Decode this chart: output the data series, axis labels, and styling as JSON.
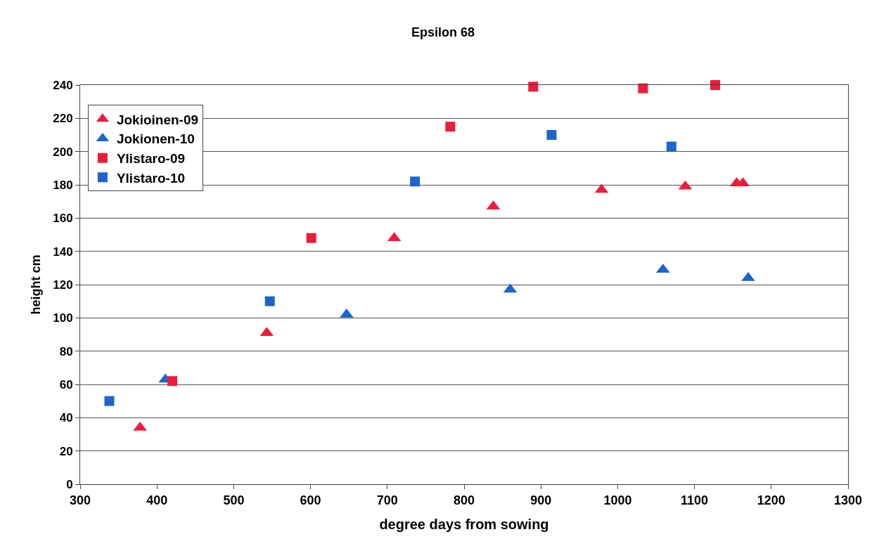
{
  "chart_data": {
    "type": "scatter",
    "title": "Epsilon 68",
    "xlabel": "degree days from sowing",
    "ylabel": "height cm",
    "xlim": [
      300,
      1300
    ],
    "xticks": [
      300,
      400,
      500,
      600,
      700,
      800,
      900,
      1000,
      1100,
      1200,
      1300
    ],
    "ylim": [
      0,
      240
    ],
    "yticks": [
      0,
      20,
      40,
      60,
      80,
      100,
      120,
      140,
      160,
      180,
      200,
      220,
      240
    ],
    "grid": "y",
    "legend": "top left",
    "series": [
      {
        "name": "Jokioinen-09",
        "color": "#ee1c3a",
        "marker": "triangle",
        "x": [
          378,
          543,
          709,
          838,
          979,
          1088,
          1155,
          1163
        ],
        "values": [
          34,
          91,
          148,
          167,
          177,
          179,
          181,
          181
        ]
      },
      {
        "name": "Jokionen-10",
        "color": "#1a66cc",
        "marker": "triangle",
        "x": [
          411,
          647,
          860,
          1059,
          1170
        ],
        "values": [
          63,
          102,
          117,
          129,
          124
        ]
      },
      {
        "name": "Ylistaro-09",
        "color": "#ee1c3a",
        "marker": "square",
        "x": [
          420,
          601,
          782,
          890,
          1033,
          1127
        ],
        "values": [
          62,
          148,
          215,
          239,
          238,
          240
        ]
      },
      {
        "name": "Ylistaro-10",
        "color": "#1a66cc",
        "marker": "square",
        "x": [
          338,
          547,
          736,
          914,
          1070
        ],
        "values": [
          50,
          110,
          182,
          210,
          203
        ]
      }
    ]
  }
}
